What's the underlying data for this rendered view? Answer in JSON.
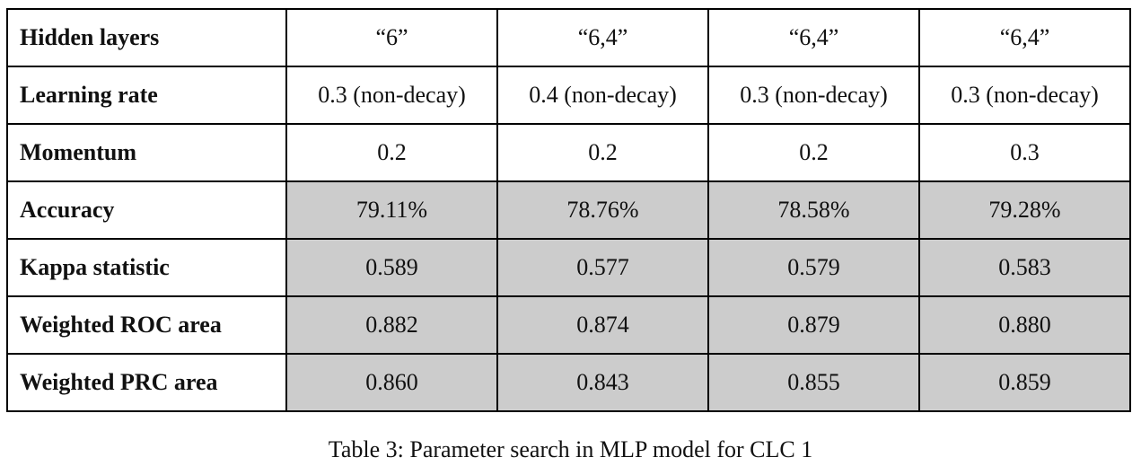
{
  "table": {
    "rows": [
      {
        "label": "Hidden layers",
        "shaded": false,
        "values": [
          "“6”",
          "“6,4”",
          "“6,4”",
          "“6,4”"
        ]
      },
      {
        "label": "Learning rate",
        "shaded": false,
        "values": [
          "0.3 (non-decay)",
          "0.4 (non-decay)",
          "0.3 (non-decay)",
          "0.3 (non-decay)"
        ]
      },
      {
        "label": "Momentum",
        "shaded": false,
        "values": [
          "0.2",
          "0.2",
          "0.2",
          "0.3"
        ]
      },
      {
        "label": "Accuracy",
        "shaded": true,
        "values": [
          "79.11%",
          "78.76%",
          "78.58%",
          "79.28%"
        ]
      },
      {
        "label": "Kappa statistic",
        "shaded": true,
        "values": [
          "0.589",
          "0.577",
          "0.579",
          "0.583"
        ]
      },
      {
        "label": "Weighted ROC area",
        "shaded": true,
        "values": [
          "0.882",
          "0.874",
          "0.879",
          "0.880"
        ]
      },
      {
        "label": "Weighted PRC area",
        "shaded": true,
        "values": [
          "0.860",
          "0.843",
          "0.855",
          "0.859"
        ]
      }
    ],
    "shade_color": "#cccccc"
  },
  "caption": "Table 3: Parameter search in MLP model for CLC 1"
}
